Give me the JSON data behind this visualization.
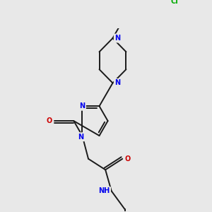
{
  "background_color": "#e8e8e8",
  "bond_color": "#1a1a1a",
  "atom_colors": {
    "N": "#0000ee",
    "O": "#cc0000",
    "Cl": "#00aa00",
    "C": "#1a1a1a"
  },
  "figsize": [
    3.0,
    3.0
  ],
  "dpi": 100,
  "lw": 1.4,
  "fs": 7.0
}
